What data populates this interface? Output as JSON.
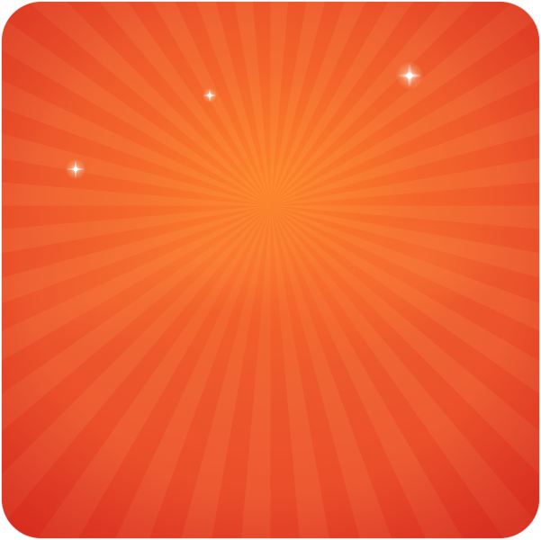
{
  "background": {
    "colors": {
      "center": "#f26a2e",
      "mid": "#ea4b2a",
      "edge": "#d9221f",
      "glow": "#ff8728"
    }
  },
  "stars": [
    {
      "name": "sparkle-icon-left"
    },
    {
      "name": "sparkle-icon-center"
    },
    {
      "name": "sparkle-icon-right"
    }
  ]
}
